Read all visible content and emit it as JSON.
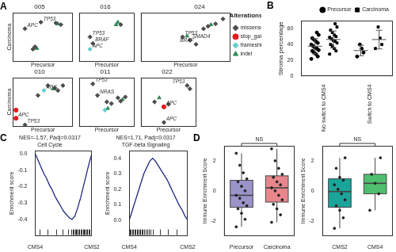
{
  "chart_data": [
    {
      "type": "scatter",
      "panel": "A",
      "title": "005",
      "x_label": "Precursor",
      "y_label": "Carcinoma",
      "xlim": [
        0,
        0.6
      ],
      "ylim": [
        0,
        0.6
      ],
      "tick_labels": false,
      "grid": false,
      "series": [
        {
          "name": "missense",
          "color": "#4d4d4d",
          "marker": "diamond",
          "x": [
            0.12,
            0.28,
            0.43,
            0.48,
            0.2,
            0.22
          ],
          "y": [
            0.4,
            0.48,
            0.47,
            0.45,
            0.15,
            0.18
          ],
          "labels": [
            "APC",
            "TP53",
            null,
            null,
            null,
            null
          ]
        },
        {
          "name": "stop_gained",
          "color": "#e41a1c",
          "marker": "circle",
          "x": [],
          "y": [],
          "labels": []
        },
        {
          "name": "frameshift",
          "color": "#66cccc",
          "marker": "diamond",
          "x": [],
          "y": [],
          "labels": []
        },
        {
          "name": "indel",
          "color": "#2e8b57",
          "marker": "triangle",
          "x": [
            0.24,
            0.45
          ],
          "y": [
            0.16,
            0.46
          ],
          "labels": [
            null,
            null
          ]
        }
      ]
    },
    {
      "type": "scatter",
      "title": "016",
      "x_label": "Precursor",
      "xlim": [
        0,
        0.6
      ],
      "ylim": [
        0,
        0.6
      ],
      "tick_labels": false,
      "grid": false,
      "series": [
        {
          "name": "missense",
          "color": "#4d4d4d",
          "marker": "diamond",
          "x": [
            0.12,
            0.15,
            0.45
          ],
          "y": [
            0.3,
            0.22,
            0.45
          ],
          "labels": [
            "TP53",
            "BRAF",
            null
          ]
        },
        {
          "name": "stop_gained",
          "color": "#e41a1c",
          "marker": "circle",
          "x": [],
          "y": [],
          "labels": []
        },
        {
          "name": "frameshift",
          "color": "#66cccc",
          "marker": "diamond",
          "x": [
            0.12
          ],
          "y": [
            0.15
          ],
          "labels": [
            "APC"
          ]
        },
        {
          "name": "indel",
          "color": "#2e8b57",
          "marker": "triangle",
          "x": [
            0.4,
            0.42
          ],
          "y": [
            0.45,
            0.48
          ],
          "labels": [
            null,
            null
          ]
        }
      ]
    },
    {
      "type": "scatter",
      "title": "024",
      "x_label": "Precursor",
      "xlim": [
        0,
        0.6
      ],
      "ylim": [
        0,
        0.6
      ],
      "tick_labels": false,
      "grid": false,
      "legend": "right",
      "legend_title": "Alterations",
      "series": [
        {
          "name": "missense",
          "color": "#4d4d4d",
          "marker": "diamond",
          "x": [
            0.28,
            0.33,
            0.37,
            0.42,
            0.45,
            0.5,
            0.55
          ],
          "y": [
            0.3,
            0.26,
            0.21,
            0.4,
            0.43,
            0.46,
            0.52
          ],
          "labels": [
            "TP53",
            "SMAD4",
            "BRAF",
            null,
            null,
            null,
            null
          ]
        },
        {
          "name": "stop_gained",
          "color": "#e41a1c",
          "marker": "circle",
          "x": [],
          "y": [],
          "labels": []
        },
        {
          "name": "frameshift",
          "color": "#66cccc",
          "marker": "diamond",
          "x": [],
          "y": [],
          "labels": []
        },
        {
          "name": "indel",
          "color": "#2e8b57",
          "marker": "triangle",
          "x": [
            0.31,
            0.47
          ],
          "y": [
            0.31,
            0.45
          ],
          "labels": [
            null,
            null
          ]
        }
      ]
    },
    {
      "type": "scatter",
      "title": "010",
      "x_label": "Precursor",
      "y_label": "Carcinoma",
      "xlim": [
        0,
        0.6
      ],
      "ylim": [
        0,
        0.6
      ],
      "tick_labels": false,
      "grid": false,
      "series": [
        {
          "name": "missense",
          "color": "#4d4d4d",
          "marker": "diamond",
          "x": [
            0.35,
            0.42,
            0.45,
            0.5,
            0.25,
            0.12
          ],
          "y": [
            0.5,
            0.47,
            0.44,
            0.5,
            0.38,
            0.02
          ],
          "labels": [
            null,
            null,
            null,
            null,
            null,
            "TP53"
          ]
        },
        {
          "name": "stop_gained",
          "color": "#e41a1c",
          "marker": "circle",
          "x": [
            0.03,
            0.03
          ],
          "y": [
            0.2,
            0.1
          ],
          "labels": [
            null,
            "APC"
          ]
        },
        {
          "name": "frameshift",
          "color": "#66cccc",
          "marker": "diamond",
          "x": [
            0.31
          ],
          "y": [
            0.44
          ],
          "labels": [
            "APC"
          ]
        },
        {
          "name": "indel",
          "color": "#2e8b57",
          "marker": "triangle",
          "x": [
            0.4
          ],
          "y": [
            0.46
          ],
          "labels": [
            null
          ]
        }
      ]
    },
    {
      "type": "scatter",
      "title": "011",
      "x_label": "Precursor",
      "xlim": [
        0,
        0.6
      ],
      "ylim": [
        0,
        0.6
      ],
      "tick_labels": false,
      "grid": false,
      "series": [
        {
          "name": "missense",
          "color": "#4d4d4d",
          "marker": "diamond",
          "x": [
            0.15,
            0.2,
            0.3,
            0.35,
            0.42,
            0.45,
            0.5
          ],
          "y": [
            0.52,
            0.38,
            0.3,
            0.28,
            0.35,
            0.31,
            0.36
          ],
          "labels": [
            "TP53",
            "NRAS",
            null,
            null,
            null,
            null,
            null
          ]
        },
        {
          "name": "stop_gained",
          "color": "#e41a1c",
          "marker": "circle",
          "x": [],
          "y": [],
          "labels": []
        },
        {
          "name": "frameshift",
          "color": "#66cccc",
          "marker": "diamond",
          "x": [
            0.28
          ],
          "y": [
            0.2
          ],
          "labels": [
            null
          ]
        },
        {
          "name": "indel",
          "color": "#2e8b57",
          "marker": "triangle",
          "x": [
            0.31,
            0.47
          ],
          "y": [
            0.22,
            0.33
          ],
          "labels": [
            null,
            null
          ]
        }
      ]
    },
    {
      "type": "scatter",
      "title": "022",
      "x_label": "Precursor",
      "xlim": [
        0,
        0.6
      ],
      "ylim": [
        0,
        0.6
      ],
      "tick_labels": false,
      "grid": false,
      "series": [
        {
          "name": "missense",
          "color": "#4d4d4d",
          "marker": "diamond",
          "x": [
            0.5,
            0.53,
            0.15,
            0.3,
            0.25
          ],
          "y": [
            0.5,
            0.46,
            0.3,
            0.27,
            0.05
          ],
          "labels": [
            "TP53",
            null,
            null,
            null,
            "APC"
          ]
        },
        {
          "name": "stop_gained",
          "color": "#e41a1c",
          "marker": "circle",
          "x": [
            0.25
          ],
          "y": [
            0.24
          ],
          "labels": [
            "APC"
          ]
        },
        {
          "name": "frameshift",
          "color": "#66cccc",
          "marker": "diamond",
          "x": [],
          "y": [],
          "labels": []
        },
        {
          "name": "indel",
          "color": "#2e8b57",
          "marker": "triangle",
          "x": [
            0.2
          ],
          "y": [
            0.35
          ],
          "labels": [
            null
          ]
        }
      ]
    },
    {
      "type": "dot",
      "panel": "B",
      "y_label": "Stroma percentage",
      "categories": [
        "No switch to CMS4",
        "Switch to CMS4"
      ],
      "ylim": [
        0,
        70
      ],
      "yticks": [
        0,
        20,
        40,
        60
      ],
      "grid": false,
      "legend": "top",
      "series": [
        {
          "name": "Precursor",
          "color": "#000000",
          "marker": "circle",
          "values": [
            [
              22,
              25,
              28,
              30,
              32,
              33,
              35,
              36,
              38,
              40,
              42,
              44,
              46,
              48,
              52,
              55
            ],
            [
              25,
              30,
              35,
              40
            ]
          ],
          "mean": [
            37.9,
            32.5
          ],
          "sd": [
            9.6,
            6.5
          ]
        },
        {
          "name": "Carcinoma",
          "color": "#000000",
          "marker": "square",
          "values": [
            [
              28,
              32,
              35,
              38,
              40,
              42,
              44,
              45,
              47,
              49,
              50,
              52,
              55,
              58,
              62,
              66
            ],
            [
              35,
              40,
              48,
              62
            ]
          ],
          "mean": [
            46.4,
            46.25
          ],
          "sd": [
            10.6,
            11.7
          ]
        }
      ]
    },
    {
      "type": "line",
      "panel": "C",
      "annotation": "NES=-1.57, Padj=0.0317",
      "title": "Cell Cycle",
      "y_label": "Enrichment score",
      "color": "#1f2a80",
      "grid": false,
      "x": [
        0,
        5,
        10,
        15,
        20,
        25,
        30,
        35,
        40,
        45,
        50,
        55,
        60,
        65,
        70,
        75,
        80,
        85,
        90,
        95,
        100
      ],
      "values": [
        0,
        -0.04,
        -0.08,
        -0.12,
        -0.15,
        -0.19,
        -0.22,
        -0.26,
        -0.29,
        -0.32,
        -0.35,
        -0.37,
        -0.39,
        -0.4,
        -0.38,
        -0.33,
        -0.27,
        -0.2,
        -0.13,
        -0.06,
        0
      ],
      "hits": [
        8,
        22,
        37,
        48,
        58,
        64,
        66,
        68,
        70,
        72,
        74,
        76,
        78,
        80,
        82,
        84,
        86,
        88,
        90,
        92,
        94,
        96,
        98
      ],
      "xlim": [
        0,
        100
      ],
      "xticks": [
        {
          "value": 0,
          "label": "CMS4"
        },
        {
          "value": 100,
          "label": "CMS2"
        }
      ],
      "ylim": [
        -0.5,
        0.02
      ],
      "yticks": [
        -0.4,
        -0.3,
        -0.2,
        -0.1,
        {
          "value": 0,
          "label": "0.0"
        }
      ]
    },
    {
      "type": "line",
      "annotation": "NES=1.71, Padj=0.0317",
      "title": "TGF-beta Signaling",
      "y_label": "Enrichment score",
      "color": "#1f2a80",
      "grid": false,
      "x": [
        0,
        5,
        10,
        15,
        20,
        25,
        30,
        35,
        40,
        45,
        50,
        55,
        60,
        65,
        70,
        75,
        80,
        85,
        90,
        95,
        100
      ],
      "values": [
        0,
        0.06,
        0.12,
        0.18,
        0.24,
        0.3,
        0.34,
        0.38,
        0.4,
        0.38,
        0.35,
        0.32,
        0.29,
        0.26,
        0.22,
        0.18,
        0.14,
        0.1,
        0.07,
        0.03,
        0
      ],
      "hits": [
        1,
        3,
        5,
        7,
        9,
        11,
        13,
        15,
        17,
        19,
        21,
        23,
        25,
        28,
        31,
        34,
        37,
        40,
        52,
        66,
        81
      ],
      "xlim": [
        0,
        100
      ],
      "xticks": [
        {
          "value": 0,
          "label": "CMS4"
        },
        {
          "value": 100,
          "label": "CMS2"
        }
      ],
      "ylim": [
        -0.1,
        0.45
      ],
      "yticks": [
        {
          "value": 0,
          "label": "0.0"
        },
        0.1,
        0.2,
        0.3,
        0.4
      ]
    },
    {
      "type": "box",
      "panel": "D",
      "y_label": "Immune Enrichment Score",
      "annotation": "NS",
      "categories": [
        "Precursor",
        "Carcinoma"
      ],
      "colors": [
        "#9b94c9",
        "#e8868c"
      ],
      "grid": false,
      "ylim": [
        -3,
        3
      ],
      "yticks": [
        -2,
        0,
        2
      ],
      "values": [
        [
          -2.4,
          -1.9,
          -1.5,
          -1.2,
          -1,
          -0.8,
          -0.5,
          -0.3,
          0,
          0.3,
          0.6,
          0.8,
          1.2,
          1.7,
          2.5
        ],
        [
          -2.1,
          -1.6,
          -1.2,
          -0.9,
          -0.6,
          -0.3,
          0,
          0.2,
          0.4,
          0.6,
          0.9,
          1.1,
          1.5,
          2,
          2.8
        ]
      ],
      "box": [
        {
          "min": -2.4,
          "q1": -1.1,
          "median": -0.3,
          "q3": 0.7,
          "max": 2.5
        },
        {
          "min": -2.1,
          "q1": -0.75,
          "median": 0.2,
          "q3": 1.0,
          "max": 2.8
        }
      ]
    },
    {
      "type": "box",
      "y_label": "Immune Enrichment Score",
      "annotation": "NS",
      "categories": [
        "CMS2",
        "CMS4"
      ],
      "colors": [
        "#1aa59a",
        "#4fbf6f"
      ],
      "grid": false,
      "ylim": [
        -3,
        3
      ],
      "yticks": [
        -2,
        0,
        2
      ],
      "values": [
        [
          -2.5,
          -1.8,
          -1.3,
          -1,
          -0.6,
          -0.2,
          0.1,
          0.4,
          0.7,
          0.9,
          1.5,
          2.2
        ],
        [
          -1.3,
          -0.2,
          0.5,
          1.1,
          2.2
        ]
      ],
      "box": [
        {
          "min": -2.5,
          "q1": -1.1,
          "median": -0.05,
          "q3": 0.8,
          "max": 2.2
        },
        {
          "min": -1.3,
          "q1": -0.2,
          "median": 0.5,
          "q3": 1.1,
          "max": 2.2
        }
      ]
    }
  ]
}
